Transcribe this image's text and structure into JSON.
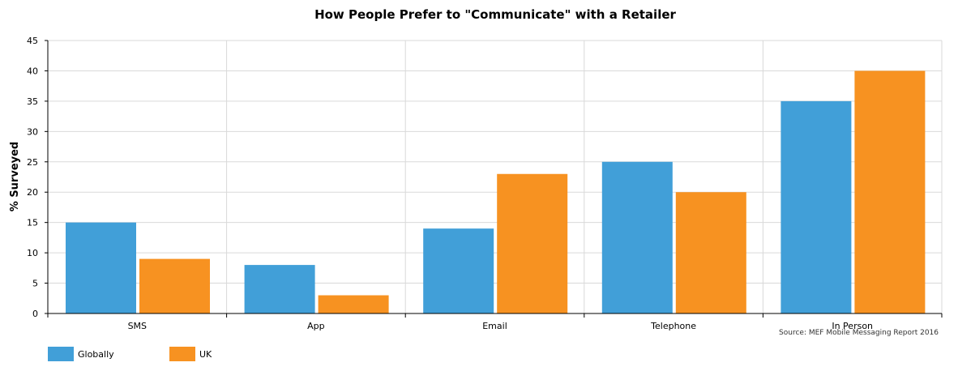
{
  "chart_data": {
    "type": "bar",
    "title": "How People Prefer to \"Communicate\" with a Retailer",
    "ylabel": "% Surveyed",
    "xlabel": "",
    "source": "Source: MEF Mobile Messaging Report 2016",
    "categories": [
      "SMS",
      "App",
      "Email",
      "Telephone",
      "In Person"
    ],
    "series": [
      {
        "name": "Globally",
        "color": "#419fd8",
        "values": [
          15,
          8,
          14,
          25,
          35
        ]
      },
      {
        "name": "UK",
        "color": "#f79221",
        "values": [
          9,
          3,
          23,
          20,
          40
        ]
      }
    ],
    "ylim": [
      0,
      45
    ],
    "yticks": [
      0,
      5,
      10,
      15,
      20,
      25,
      30,
      35,
      40,
      45
    ],
    "grid": true,
    "legend_position": "bottom-left"
  }
}
